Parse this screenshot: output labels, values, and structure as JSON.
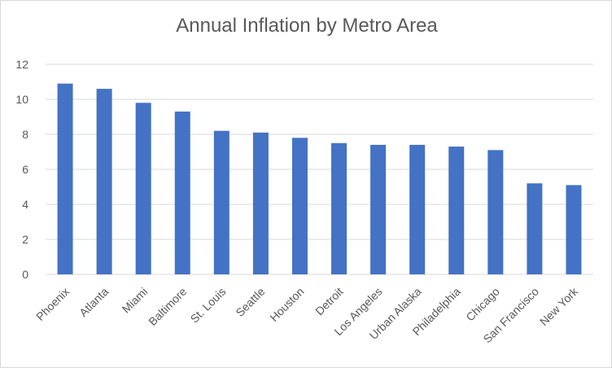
{
  "chart_data": {
    "type": "bar",
    "title": "Annual Inflation by Metro Area",
    "xlabel": "",
    "ylabel": "",
    "categories": [
      "Phoenix",
      "Atlanta",
      "Miami",
      "Baltimore",
      "St. Louis",
      "Seattle",
      "Houston",
      "Detroit",
      "Los Angeles",
      "Urban Alaska",
      "Philadelphia",
      "Chicago",
      "San Francisco",
      "New York"
    ],
    "values": [
      10.9,
      10.6,
      9.8,
      9.3,
      8.2,
      8.1,
      7.8,
      7.5,
      7.4,
      7.4,
      7.3,
      7.1,
      5.2,
      5.1
    ],
    "ylim": [
      0,
      12
    ],
    "yticks": [
      "0",
      "2",
      "4",
      "6",
      "8",
      "10",
      "12"
    ],
    "grid": true,
    "legend": "none",
    "bar_color": "#4472C4",
    "grid_color": "#d9d9d9",
    "text_color": "#595959"
  }
}
